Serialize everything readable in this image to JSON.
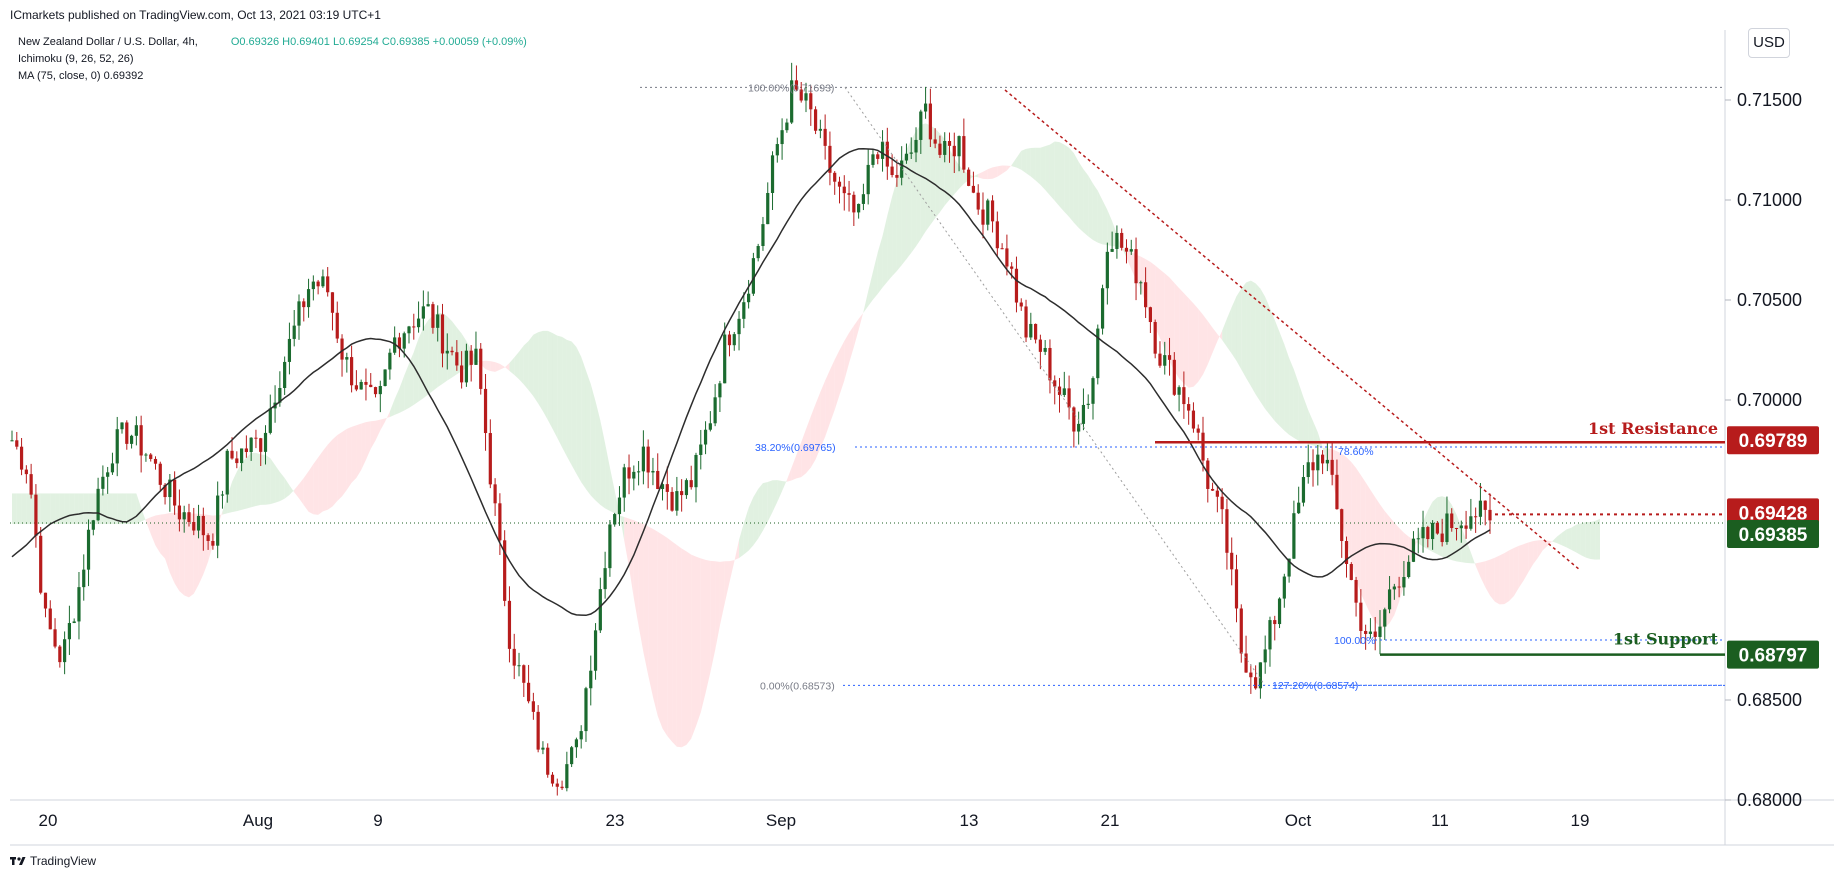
{
  "header": {
    "published_line": "ICmarkets published on TradingView.com, Oct 13, 2021 03:19 UTC+1"
  },
  "legend": {
    "symbol": "New Zealand Dollar / U.S. Dollar, 4h,",
    "ohlc": "O0.69326 H0.69401 L0.69254 C0.69385 +0.00059 (+0.09%)",
    "indicator1": "Ichimoku (9, 26, 52, 26)",
    "indicator2": "MA (75, close, 0)  0.69392"
  },
  "currency_button": "USD",
  "footer": {
    "brand": "TradingView",
    "logo_icon": "tradingview-logo-icon"
  },
  "colors": {
    "up": "#1b6b2f",
    "down": "#b71c1c",
    "ma": "#2d2d2d",
    "cloud_green": "#c8e6c9",
    "cloud_red": "#ffcdd2",
    "resistance": "#b71c1c",
    "support": "#1b5e20",
    "fib": "#2962ff"
  },
  "chart_data": {
    "type": "candlestick",
    "title": "",
    "xlabel": "",
    "ylabel": "",
    "ylim": [
      0.68,
      0.7185
    ],
    "y_ticks": [
      "0.71500",
      "0.71000",
      "0.70500",
      "0.70000",
      "0.68500",
      "0.68000"
    ],
    "x_ticks": [
      "20",
      "Aug",
      "9",
      "23",
      "Sep",
      "13",
      "21",
      "Oct",
      "11",
      "19"
    ],
    "price_path": [
      [
        0.698,
        0.6965,
        0.689,
        0.687,
        0.6905,
        0.695,
        0.6975,
        0.6985,
        0.6975,
        0.696,
        0.6945,
        0.694,
        0.693,
        0.697,
        0.6975,
        0.698,
        0.701,
        0.7035,
        0.706,
        0.7055,
        0.702,
        0.7005,
        0.6995,
        0.703,
        0.704,
        0.7045,
        0.703,
        0.7015,
        0.702,
        0.695,
        0.688,
        0.685,
        0.682,
        0.6812,
        0.6825,
        0.688,
        0.694,
        0.6965,
        0.6975,
        0.696,
        0.695,
        0.696,
        0.699,
        0.703,
        0.705,
        0.708,
        0.7125,
        0.7155,
        0.7145,
        0.712,
        0.71,
        0.709,
        0.713,
        0.711,
        0.712,
        0.7145,
        0.712,
        0.713,
        0.71,
        0.709,
        0.707,
        0.7035,
        0.7025,
        0.7005,
        0.699,
        0.7005,
        0.7085,
        0.7075,
        0.706,
        0.7025,
        0.701,
        0.6995,
        0.696,
        0.6935,
        0.6875,
        0.686,
        0.689,
        0.693,
        0.6965,
        0.6975,
        0.6935,
        0.6895,
        0.6875,
        0.6905,
        0.692,
        0.693,
        0.6935,
        0.694,
        0.6945,
        0.6938
      ]
    ],
    "ma_label": "MA (75, close, 0)",
    "fib_levels": [
      {
        "label": "100.00%(0.71693)",
        "value": 0.71693
      },
      {
        "label": "38.20%(0.69765)",
        "value": 0.69765
      },
      {
        "label": "0.00%(0.68573)",
        "value": 0.68573
      },
      {
        "label": "127.20%(0.68574)",
        "value": 0.68574
      },
      {
        "label": "100.00%",
        "value": 0.688
      },
      {
        "label": "78.60%",
        "value": 0.69765
      }
    ],
    "levels": [
      {
        "name": "1st Resistance",
        "value": 0.69789,
        "label": "0.69789",
        "color": "#b71c1c"
      },
      {
        "name": "",
        "value": 0.69428,
        "label": "0.69428",
        "color": "#b71c1c"
      },
      {
        "name": "",
        "value": 0.69385,
        "label": "0.69385",
        "color": "#1b5e20"
      },
      {
        "name": "1st Support",
        "value": 0.68797,
        "label": "0.68797",
        "color": "#1b5e20"
      }
    ],
    "annotations": {
      "resistance_label": "1st Resistance",
      "support_label": "1st Support"
    }
  }
}
